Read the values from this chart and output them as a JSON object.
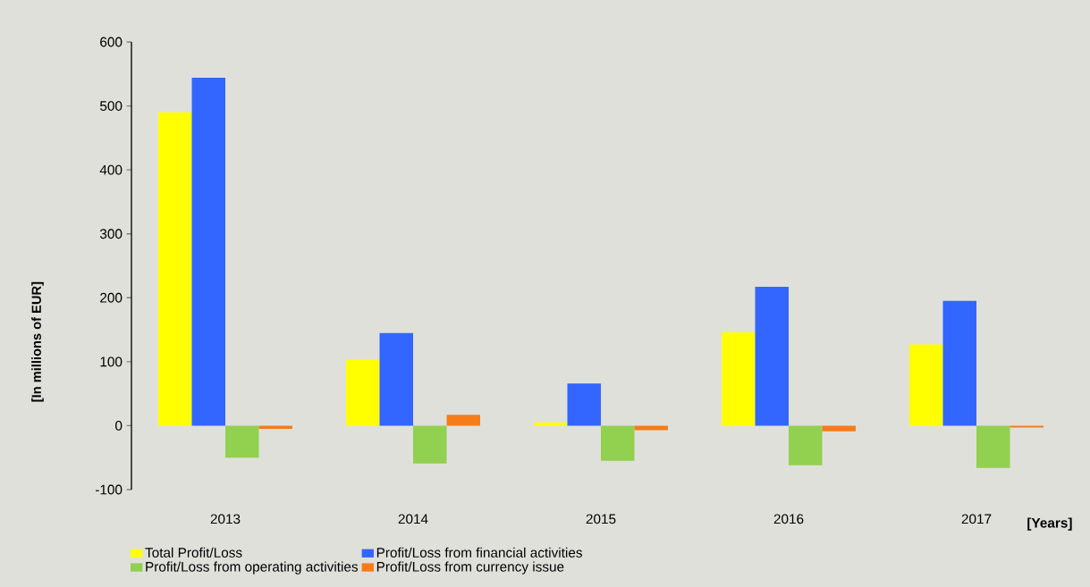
{
  "chart_data": {
    "type": "bar",
    "categories": [
      "2013",
      "2014",
      "2015",
      "2016",
      "2017"
    ],
    "series": [
      {
        "name": "Total Profit/Loss",
        "color": "#ffff00",
        "values": [
          490,
          103,
          5,
          146,
          127
        ]
      },
      {
        "name": "Profit/Loss from financial activities",
        "color": "#3366ff",
        "values": [
          544,
          145,
          66,
          217,
          195
        ]
      },
      {
        "name": "Profit/Loss from operating activities",
        "color": "#92d050",
        "values": [
          -50,
          -59,
          -55,
          -62,
          -66
        ]
      },
      {
        "name": "Profit/Loss from currency issue",
        "color": "#f57c19",
        "values": [
          -5,
          17,
          -7,
          -9,
          -3
        ]
      }
    ],
    "xlabel": "[Years]",
    "ylabel": "[In millions of EUR]",
    "ylim": [
      -100,
      600
    ],
    "yticks": [
      -100,
      0,
      100,
      200,
      300,
      400,
      500,
      600
    ],
    "legend": "bottom"
  }
}
